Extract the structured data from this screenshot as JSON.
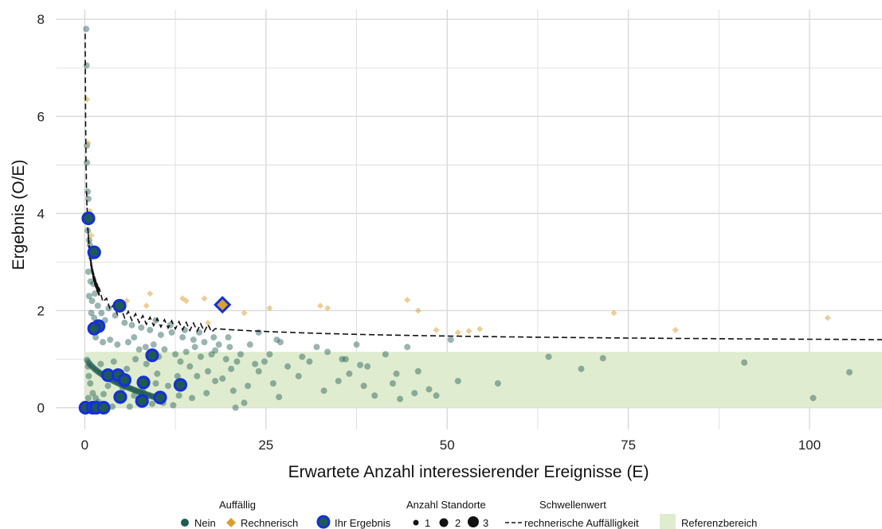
{
  "colors": {
    "nein": "#1f5a52",
    "rechnerisch": "#d8a030",
    "ihr_ergebnis_outline": "#1430d8",
    "referenzbereich": "#dfeccf",
    "threshold_line": "#111111",
    "grid": "#d9d9d9"
  },
  "legend": {
    "auffaellig_title": "Auffällig",
    "nein": "Nein",
    "rechnerisch": "Rechnerisch",
    "ihr_ergebnis": "Ihr Ergebnis",
    "anzahl_title": "Anzahl Standorte",
    "size_1": "1",
    "size_2": "2",
    "size_3": "3",
    "schwellenwert_title": "Schwellenwert",
    "schwellenwert_line": "rechnerische Auffälligkeit",
    "referenzbereich": "Referenzbereich"
  },
  "chart_data": {
    "type": "scatter",
    "title": "",
    "xlabel": "Erwartete Anzahl interessierender Ereignisse (E)",
    "ylabel": "Ergebnis (O/E)",
    "xlim": [
      -4,
      110
    ],
    "ylim": [
      -0.45,
      8.2
    ],
    "x_ticks": [
      0,
      25,
      50,
      75,
      100
    ],
    "y_ticks": [
      0,
      2,
      4,
      6,
      8
    ],
    "grid": true,
    "legend_position": "bottom",
    "reference_area": {
      "x": [
        0,
        110
      ],
      "y": [
        0,
        1.15
      ],
      "label": "Referenzbereich"
    },
    "threshold_line": {
      "label": "rechnerische Auffälligkeit",
      "style": "dashed",
      "approx_formula": "1.25 + 1.6/sqrt(E)"
    },
    "series": [
      {
        "name": "Nein",
        "points": [
          [
            0.2,
            7.8
          ],
          [
            0.25,
            7.05
          ],
          [
            0.3,
            5.4
          ],
          [
            0.3,
            5.05
          ],
          [
            0.4,
            4.45
          ],
          [
            0.5,
            4.3
          ],
          [
            0.4,
            3.65
          ],
          [
            0.6,
            3.45
          ],
          [
            0.7,
            3.35
          ],
          [
            0.9,
            3.1
          ],
          [
            0.5,
            2.8
          ],
          [
            0.8,
            2.6
          ],
          [
            1.2,
            2.55
          ],
          [
            0.6,
            2.3
          ],
          [
            1.0,
            2.2
          ],
          [
            1.4,
            2.35
          ],
          [
            1.8,
            2.1
          ],
          [
            0.9,
            1.95
          ],
          [
            1.3,
            1.85
          ],
          [
            1.6,
            1.75
          ],
          [
            2.3,
            1.95
          ],
          [
            2.8,
            1.8
          ],
          [
            3.3,
            2.05
          ],
          [
            4.2,
            1.9
          ],
          [
            5.5,
            1.75
          ],
          [
            6.5,
            1.7
          ],
          [
            7.8,
            1.65
          ],
          [
            9.0,
            1.6
          ],
          [
            10.5,
            1.5
          ],
          [
            12.0,
            1.55
          ],
          [
            13.5,
            1.45
          ],
          [
            15.0,
            1.4
          ],
          [
            16.5,
            1.35
          ],
          [
            18.5,
            1.3
          ],
          [
            20.0,
            1.25
          ],
          [
            21.5,
            1.1
          ],
          [
            1.5,
            1.45
          ],
          [
            2.5,
            1.35
          ],
          [
            3.5,
            1.4
          ],
          [
            4.5,
            1.3
          ],
          [
            6.0,
            1.35
          ],
          [
            7.5,
            1.2
          ],
          [
            9.5,
            1.3
          ],
          [
            11.0,
            1.2
          ],
          [
            12.5,
            1.1
          ],
          [
            14.0,
            1.15
          ],
          [
            16.0,
            1.05
          ],
          [
            17.5,
            1.1
          ],
          [
            19.5,
            1.0
          ],
          [
            21.0,
            0.95
          ],
          [
            23.5,
            0.9
          ],
          [
            25.5,
            1.1
          ],
          [
            27.0,
            1.35
          ],
          [
            30.0,
            1.05
          ],
          [
            32.0,
            1.25
          ],
          [
            33.5,
            1.15
          ],
          [
            35.5,
            1.0
          ],
          [
            37.5,
            1.3
          ],
          [
            39.0,
            0.85
          ],
          [
            41.5,
            1.1
          ],
          [
            44.5,
            1.25
          ],
          [
            46.0,
            0.75
          ],
          [
            24.0,
            0.75
          ],
          [
            26.0,
            0.5
          ],
          [
            28.0,
            0.85
          ],
          [
            29.5,
            0.65
          ],
          [
            31.0,
            0.95
          ],
          [
            33.0,
            0.35
          ],
          [
            35.0,
            0.55
          ],
          [
            36.5,
            0.7
          ],
          [
            38.5,
            0.45
          ],
          [
            40.0,
            0.25
          ],
          [
            42.5,
            0.5
          ],
          [
            43.5,
            0.18
          ],
          [
            45.5,
            0.3
          ],
          [
            47.5,
            0.38
          ],
          [
            48.5,
            0.25
          ],
          [
            51.5,
            0.55
          ],
          [
            57.0,
            0.5
          ],
          [
            64.0,
            1.05
          ],
          [
            68.5,
            0.8
          ],
          [
            71.5,
            1.02
          ],
          [
            91.0,
            0.93
          ],
          [
            100.5,
            0.2
          ],
          [
            105.5,
            0.73
          ],
          [
            20.5,
            0.35
          ],
          [
            22.5,
            0.45
          ],
          [
            18.0,
            0.55
          ],
          [
            16.8,
            0.3
          ],
          [
            15.5,
            0.65
          ],
          [
            14.5,
            0.85
          ],
          [
            13.0,
            0.25
          ],
          [
            11.5,
            0.45
          ],
          [
            10.0,
            0.7
          ],
          [
            8.5,
            0.9
          ],
          [
            7.0,
            1.0
          ],
          [
            5.8,
            0.8
          ],
          [
            4.0,
            0.95
          ],
          [
            3.0,
            0.6
          ],
          [
            2.2,
            0.9
          ],
          [
            22.0,
            0.1
          ],
          [
            20.8,
            0.0
          ],
          [
            12.2,
            0.05
          ],
          [
            9.3,
            0.08
          ],
          [
            6.2,
            0.02
          ],
          [
            3.8,
            0.02
          ],
          [
            2.7,
            0.0
          ],
          [
            1.7,
            0.02
          ],
          [
            0.9,
            0.05
          ],
          [
            0.5,
            0.2
          ],
          [
            0.45,
            0.85
          ],
          [
            0.55,
            0.65
          ],
          [
            0.75,
            0.5
          ],
          [
            1.1,
            0.3
          ],
          [
            1.5,
            0.2
          ],
          [
            1.9,
            0.12
          ],
          [
            2.6,
            0.28
          ],
          [
            3.2,
            0.45
          ],
          [
            4.7,
            0.15
          ],
          [
            5.2,
            0.4
          ],
          [
            6.8,
            0.25
          ],
          [
            8.0,
            0.35
          ],
          [
            9.8,
            0.5
          ],
          [
            10.8,
            0.1
          ],
          [
            12.8,
            0.65
          ],
          [
            14.8,
            0.2
          ],
          [
            17.0,
            0.75
          ],
          [
            19.0,
            0.6
          ],
          [
            20.2,
            0.8
          ],
          [
            24.8,
            0.95
          ],
          [
            26.8,
            0.22
          ],
          [
            50.5,
            1.4
          ],
          [
            36.0,
            1.0
          ],
          [
            38.0,
            0.88
          ],
          [
            43.0,
            0.7
          ],
          [
            17.8,
            1.45
          ],
          [
            15.8,
            1.55
          ],
          [
            13.8,
            1.6
          ],
          [
            11.8,
            1.7
          ],
          [
            9.8,
            1.8
          ],
          [
            26.5,
            1.4
          ],
          [
            24.0,
            1.55
          ],
          [
            22.8,
            1.3
          ],
          [
            19.8,
            1.45
          ],
          [
            18.0,
            1.18
          ],
          [
            15.2,
            1.25
          ],
          [
            13.2,
            0.95
          ],
          [
            10.2,
            1.05
          ],
          [
            8.4,
            1.25
          ],
          [
            6.8,
            1.45
          ]
        ]
      },
      {
        "name": "Rechnerisch",
        "points": [
          [
            0.3,
            6.35
          ],
          [
            0.45,
            5.45
          ],
          [
            0.7,
            4.05
          ],
          [
            0.9,
            3.55
          ],
          [
            9.0,
            2.35
          ],
          [
            13.5,
            2.25
          ],
          [
            14.0,
            2.2
          ],
          [
            16.5,
            2.25
          ],
          [
            22.0,
            1.95
          ],
          [
            25.5,
            2.05
          ],
          [
            32.5,
            2.1
          ],
          [
            33.5,
            2.05
          ],
          [
            44.5,
            2.22
          ],
          [
            46.0,
            2.0
          ],
          [
            48.5,
            1.6
          ],
          [
            51.5,
            1.55
          ],
          [
            53.0,
            1.58
          ],
          [
            54.5,
            1.62
          ],
          [
            73.0,
            1.95
          ],
          [
            81.5,
            1.6
          ],
          [
            102.5,
            1.85
          ],
          [
            8.5,
            2.1
          ],
          [
            5.8,
            2.2
          ],
          [
            17.0,
            1.75
          ]
        ]
      },
      {
        "name": "Ihr Ergebnis",
        "points": [
          {
            "x": 0.5,
            "y": 3.9,
            "n": 2,
            "kind": "Nein"
          },
          {
            "x": 1.3,
            "y": 3.2,
            "n": 2,
            "kind": "Nein"
          },
          {
            "x": 4.8,
            "y": 2.1,
            "n": 2,
            "kind": "Nein"
          },
          {
            "x": 1.9,
            "y": 1.68,
            "n": 2,
            "kind": "Nein"
          },
          {
            "x": 1.3,
            "y": 1.63,
            "n": 2,
            "kind": "Nein"
          },
          {
            "x": 9.3,
            "y": 1.08,
            "n": 2,
            "kind": "Nein"
          },
          {
            "x": 3.2,
            "y": 0.67,
            "n": 2,
            "kind": "Nein"
          },
          {
            "x": 4.6,
            "y": 0.67,
            "n": 2,
            "kind": "Nein"
          },
          {
            "x": 5.5,
            "y": 0.57,
            "n": 2,
            "kind": "Nein"
          },
          {
            "x": 8.1,
            "y": 0.52,
            "n": 2,
            "kind": "Nein"
          },
          {
            "x": 13.2,
            "y": 0.47,
            "n": 2,
            "kind": "Nein"
          },
          {
            "x": 4.9,
            "y": 0.22,
            "n": 2,
            "kind": "Nein"
          },
          {
            "x": 7.9,
            "y": 0.14,
            "n": 2,
            "kind": "Nein"
          },
          {
            "x": 10.4,
            "y": 0.21,
            "n": 2,
            "kind": "Nein"
          },
          {
            "x": 0.1,
            "y": 0.0,
            "n": 2,
            "kind": "Nein"
          },
          {
            "x": 1.1,
            "y": 0.0,
            "n": 2,
            "kind": "Nein"
          },
          {
            "x": 1.6,
            "y": 0.0,
            "n": 2,
            "kind": "Nein"
          },
          {
            "x": 2.6,
            "y": 0.0,
            "n": 2,
            "kind": "Nein"
          },
          {
            "x": 19.0,
            "y": 2.12,
            "n": 2,
            "kind": "Rechnerisch"
          }
        ]
      }
    ]
  }
}
